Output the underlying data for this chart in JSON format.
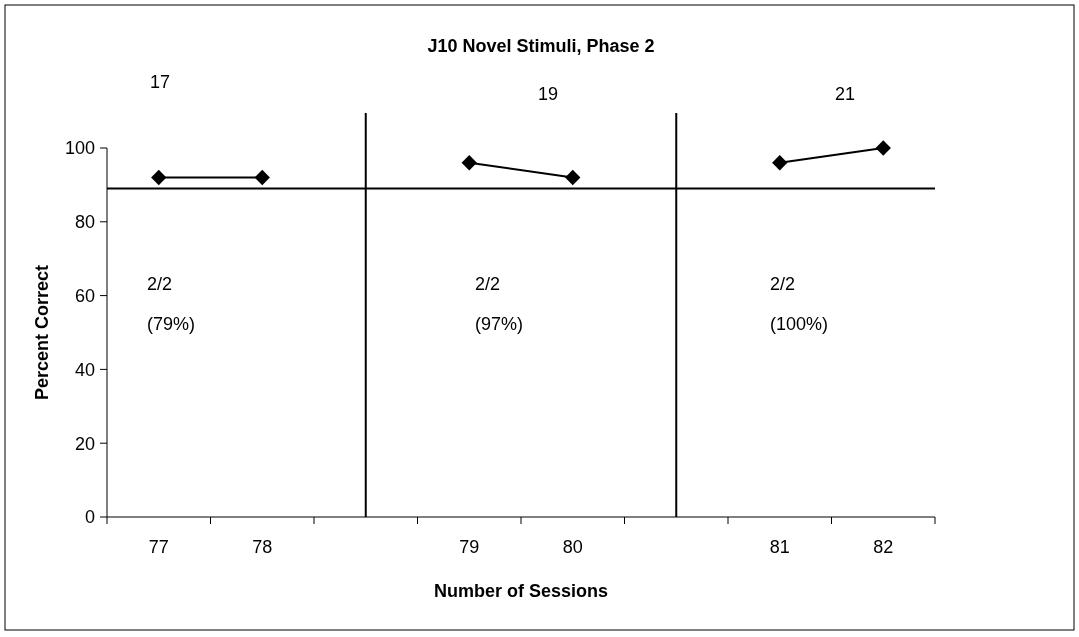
{
  "chart_data": {
    "type": "line",
    "title": "J10 Novel Stimuli, Phase 2",
    "xlabel": "Number of Sessions",
    "ylabel": "Percent Correct",
    "categories": [
      "77",
      "78",
      null,
      "79",
      "80",
      null,
      "81",
      "82"
    ],
    "series": [
      {
        "color": "#000000",
        "values": [
          92,
          92,
          null,
          96,
          92,
          null,
          96,
          100
        ]
      }
    ],
    "ylim": [
      0,
      100
    ],
    "yticks": [
      0,
      20,
      40,
      60,
      80,
      100
    ],
    "marker": "diamond",
    "line_style": "solid",
    "ref_lines": [
      {
        "axis": "y",
        "value": 89,
        "color": "#000000"
      }
    ],
    "annotations": [
      "17",
      "19",
      "21",
      "2/2\n(79%)",
      "2/2\n(97%)",
      "2/2\n(100%)"
    ]
  }
}
